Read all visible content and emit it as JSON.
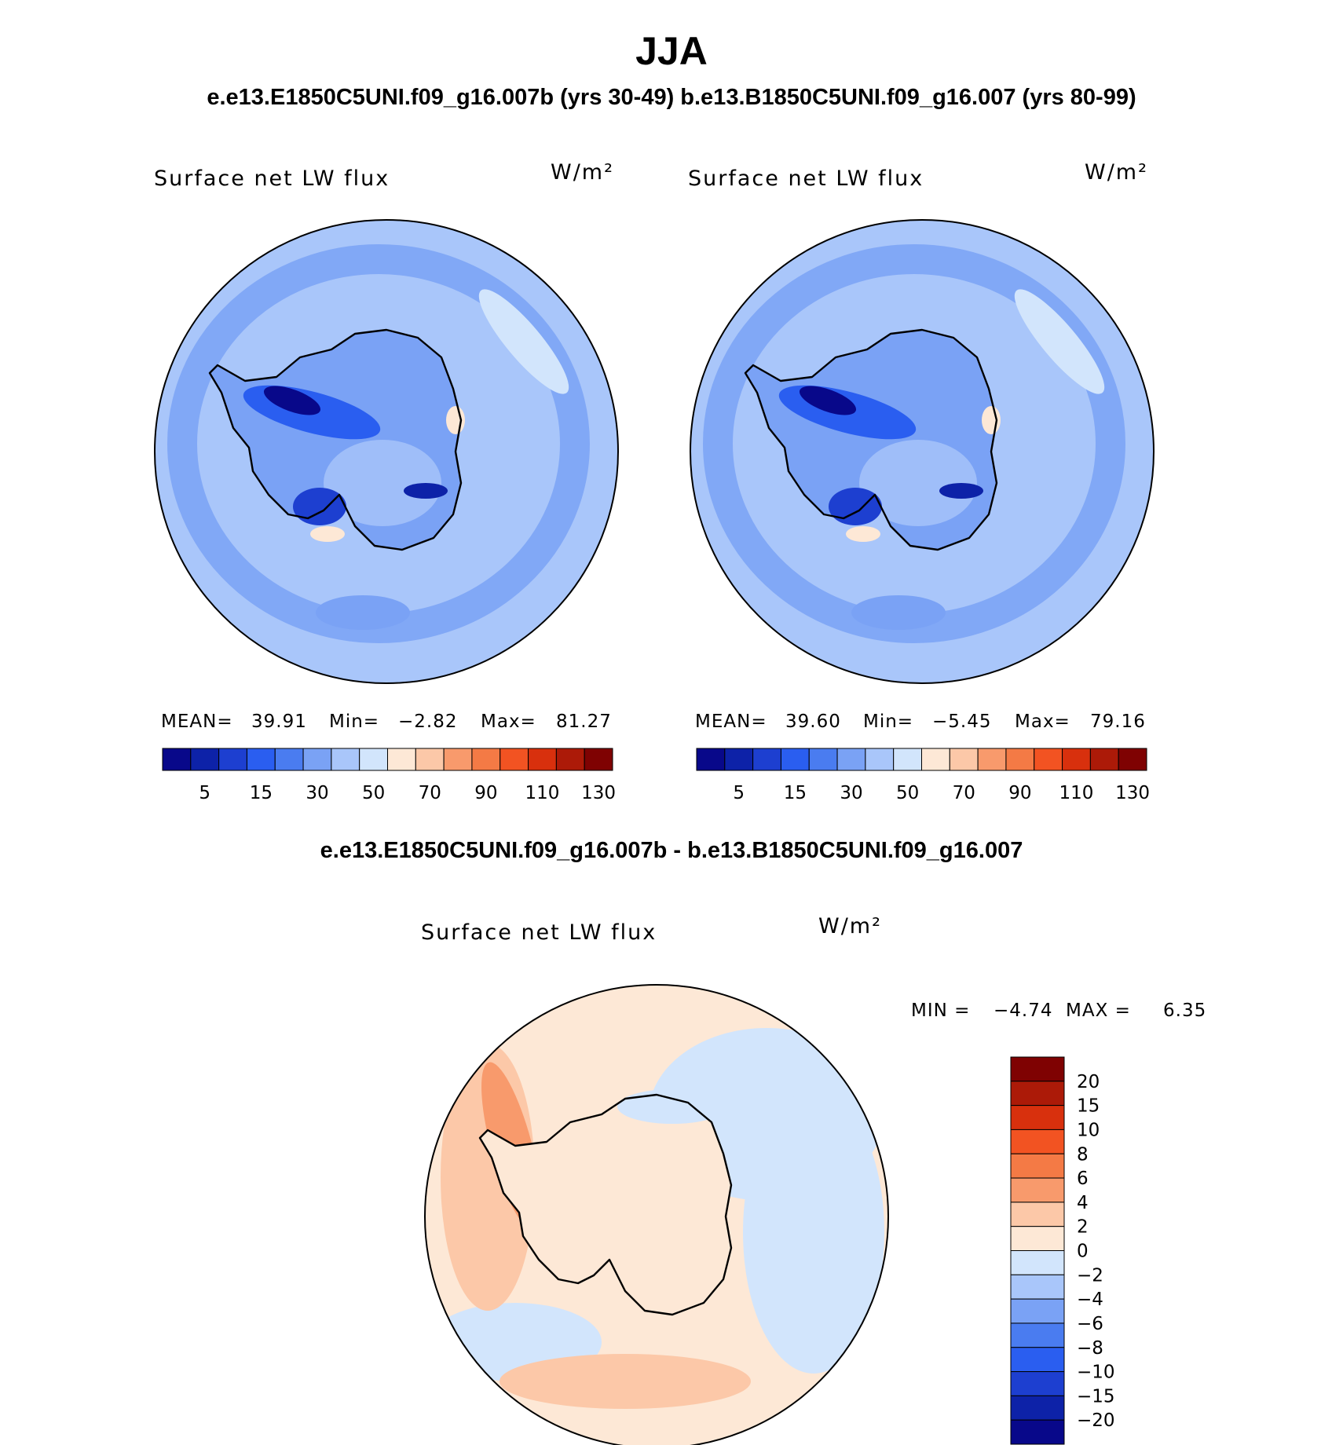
{
  "title": "JJA",
  "subtitle": "e.e13.E1850C5UNI.f09_g16.007b (yrs 30-49)  b.e13.B1850C5UNI.f09_g16.007 (yrs 80-99)",
  "diff_title": "e.e13.E1850C5UNI.f09_g16.007b - b.e13.B1850C5UNI.f09_g16.007",
  "colors": {
    "seq": [
      "#08088a",
      "#0d22a8",
      "#1d3fd0",
      "#2a5ef0",
      "#4a7cf0",
      "#7aa2f5",
      "#a9c6fa",
      "#d2e5fc",
      "#fde8d6",
      "#fcc8a8",
      "#f89a6c",
      "#f47a45",
      "#f25322",
      "#d8300d",
      "#ac1a08",
      "#7f0202"
    ],
    "diff": [
      "#08088a",
      "#0d22a8",
      "#1d3fd0",
      "#2a5ef0",
      "#4a7cf0",
      "#7aa2f5",
      "#a9c6fa",
      "#d2e5fc",
      "#fde8d6",
      "#fcc8a8",
      "#f89a6c",
      "#f47a45",
      "#f25322",
      "#d8300d",
      "#ac1a08",
      "#7f0202"
    ],
    "land_outline": "#000000"
  },
  "chart_data": [
    {
      "type": "heatmap",
      "panel": "case1",
      "label": "Surface net LW flux",
      "units": "W/m²",
      "mean_label": "MEAN=",
      "mean": "39.91",
      "min_label": "Min=",
      "min": "−2.82",
      "max_label": "Max=",
      "max": "81.27",
      "colorbar_ticks": [
        "5",
        "15",
        "30",
        "50",
        "70",
        "90",
        "110",
        "130"
      ]
    },
    {
      "type": "heatmap",
      "panel": "case2",
      "label": "Surface net LW flux",
      "units": "W/m²",
      "mean_label": "MEAN=",
      "mean": "39.60",
      "min_label": "Min=",
      "min": "−5.45",
      "max_label": "Max=",
      "max": "79.16",
      "colorbar_ticks": [
        "5",
        "15",
        "30",
        "50",
        "70",
        "90",
        "110",
        "130"
      ]
    },
    {
      "type": "heatmap",
      "panel": "difference",
      "label": "Surface net LW flux",
      "units": "W/m²",
      "min_label": "MIN =",
      "min": "−4.74",
      "max_label": "MAX =",
      "max": "6.35",
      "colorbar_ticks": [
        "20",
        "15",
        "10",
        "8",
        "6",
        "4",
        "2",
        "0",
        "−2",
        "−4",
        "−6",
        "−8",
        "−10",
        "−15",
        "−20"
      ]
    }
  ]
}
